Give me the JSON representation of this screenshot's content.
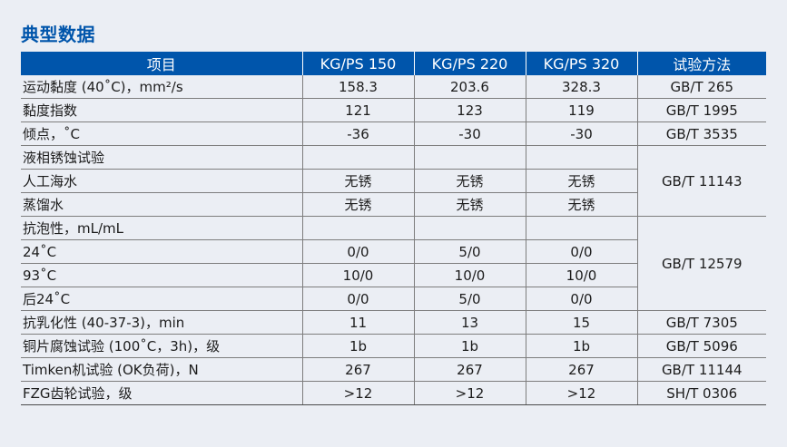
{
  "title": "典型数据",
  "headers": [
    "项目",
    "KG/PS 150",
    "KG/PS 220",
    "KG/PS 320",
    "试验方法"
  ],
  "rows": [
    {
      "label": "运动黏度 (40˚C)，mm²/s",
      "values": [
        "158.3",
        "203.6",
        "328.3"
      ],
      "method": "GB/T 265"
    },
    {
      "label": "黏度指数",
      "values": [
        "121",
        "123",
        "119"
      ],
      "method": "GB/T 1995"
    },
    {
      "label": "倾点，˚C",
      "values": [
        "-36",
        "-30",
        "-30"
      ],
      "method": "GB/T 3535"
    },
    {
      "label": "液相锈蚀试验",
      "values": [
        "",
        "",
        ""
      ],
      "method": "GB/T 11143"
    },
    {
      "label": "人工海水",
      "values": [
        "无锈",
        "无锈",
        "无锈"
      ]
    },
    {
      "label": "蒸馏水",
      "values": [
        "无锈",
        "无锈",
        "无锈"
      ]
    },
    {
      "label": "抗泡性，mL/mL",
      "values": [
        "",
        "",
        ""
      ],
      "method": "GB/T 12579"
    },
    {
      "label": "24˚C",
      "values": [
        "0/0",
        "5/0",
        "0/0"
      ]
    },
    {
      "label": "93˚C",
      "values": [
        "10/0",
        "10/0",
        "10/0"
      ]
    },
    {
      "label": "后24˚C",
      "values": [
        "0/0",
        "5/0",
        "0/0"
      ]
    },
    {
      "label": "抗乳化性 (40-37-3)，min",
      "values": [
        "11",
        "13",
        "15"
      ],
      "method": "GB/T 7305"
    },
    {
      "label": "铜片腐蚀试验 (100˚C，3h)，级",
      "values": [
        "1b",
        "1b",
        "1b"
      ],
      "method": "GB/T 5096"
    },
    {
      "label": "Timken机试验 (OK负荷)，N",
      "values": [
        "267",
        "267",
        "267"
      ],
      "method": "GB/T 11144"
    },
    {
      "label": "FZG齿轮试验，级",
      "values": [
        ">12",
        ">12",
        ">12"
      ],
      "method": "SH/T 0306"
    }
  ]
}
